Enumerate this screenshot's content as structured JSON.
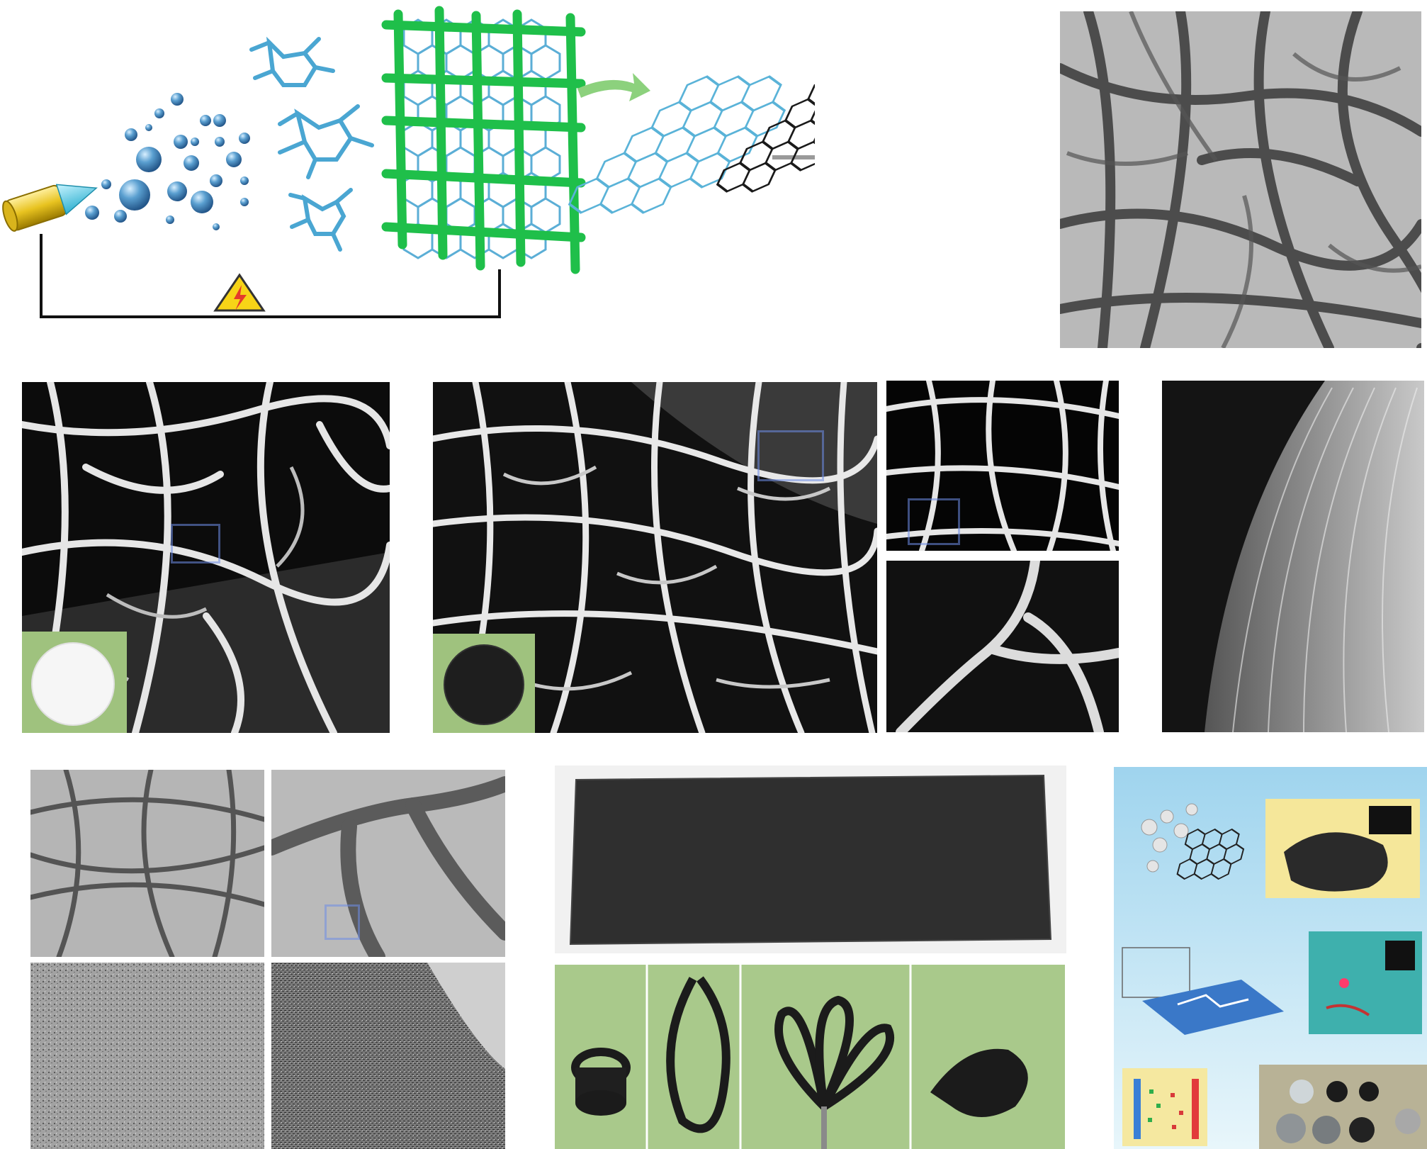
{
  "figure": {
    "colors": {
      "background": "#ffffff",
      "nozzle_yellow": "#e8c320",
      "nozzle_cyan": "#5fd3ea",
      "droplet_blue": "#5a9fd0",
      "mesh_green": "#1fbf4a",
      "honeycomb_blue": "#5ab3d8",
      "honeycomb_black": "#1a1a1a",
      "arrow_green": "#8cd17d",
      "arrow_gray": "#9a9a9a",
      "warning_yellow": "#f7d417",
      "sem_dark": "#0a0a0a",
      "tem_gray": "#b5b5b5",
      "photo_green": "#a7c98a",
      "infographic_blue": "#bfe3f2"
    },
    "icons": {
      "high_voltage": "high-voltage-warning-icon",
      "process_arrow": "right-arrow-icon"
    }
  }
}
